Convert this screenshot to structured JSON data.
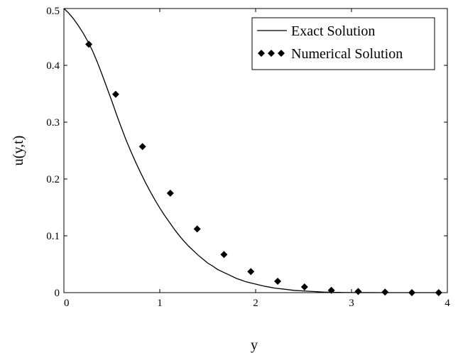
{
  "chart_data": {
    "type": "line",
    "title": "",
    "xlabel": "y",
    "ylabel": "u(y,t)",
    "xlim": [
      0,
      4
    ],
    "ylim": [
      0,
      0.5
    ],
    "xticks": [
      "0",
      "1",
      "2",
      "3",
      "4"
    ],
    "yticks": [
      "0",
      "0.1",
      "0.2",
      "0.3",
      "0.4",
      "0.5"
    ],
    "grid": false,
    "legend_position": "top-right",
    "series": [
      {
        "name": "Exact Solution",
        "style": "line",
        "color": "#000000",
        "x": [
          0,
          0.05,
          0.1,
          0.15,
          0.2,
          0.25,
          0.3,
          0.35,
          0.4,
          0.45,
          0.5,
          0.55,
          0.6,
          0.65,
          0.7,
          0.75,
          0.8,
          0.85,
          0.9,
          0.95,
          1.0,
          1.05,
          1.1,
          1.15,
          1.2,
          1.25,
          1.3,
          1.35,
          1.4,
          1.45,
          1.5,
          1.55,
          1.6,
          1.65,
          1.7,
          1.75,
          1.8,
          1.85,
          1.9,
          1.95,
          2.0,
          2.1,
          2.2,
          2.3,
          2.4,
          2.5,
          2.6,
          2.7,
          2.8,
          2.9,
          3.0,
          3.1,
          3.2,
          3.3,
          3.4,
          3.5,
          3.6,
          3.7,
          3.8,
          3.9,
          3.93
        ],
        "y": [
          0.5,
          0.492,
          0.482,
          0.47,
          0.457,
          0.442,
          0.425,
          0.405,
          0.383,
          0.36,
          0.337,
          0.313,
          0.29,
          0.268,
          0.248,
          0.229,
          0.211,
          0.194,
          0.178,
          0.163,
          0.149,
          0.136,
          0.124,
          0.112,
          0.101,
          0.091,
          0.082,
          0.074,
          0.066,
          0.059,
          0.052,
          0.047,
          0.041,
          0.037,
          0.033,
          0.029,
          0.025,
          0.022,
          0.019,
          0.017,
          0.015,
          0.011,
          0.008,
          0.006,
          0.004,
          0.003,
          0.002,
          0.001,
          0.0006,
          0.0003,
          0.0002,
          0.0001,
          0.0001,
          0.0,
          0.0,
          0.0,
          0.0,
          0.0,
          0.0,
          0.0,
          0.0
        ]
      },
      {
        "name": "Numerical Solution",
        "style": "markers",
        "marker": "diamond",
        "color": "#000000",
        "x": [
          0.26,
          0.54,
          0.82,
          1.11,
          1.39,
          1.67,
          1.95,
          2.23,
          2.51,
          2.79,
          3.07,
          3.35,
          3.63,
          3.91
        ],
        "y": [
          0.437,
          0.349,
          0.257,
          0.175,
          0.112,
          0.067,
          0.037,
          0.02,
          0.01,
          0.004,
          0.002,
          0.001,
          0.0,
          0.0
        ]
      }
    ]
  }
}
